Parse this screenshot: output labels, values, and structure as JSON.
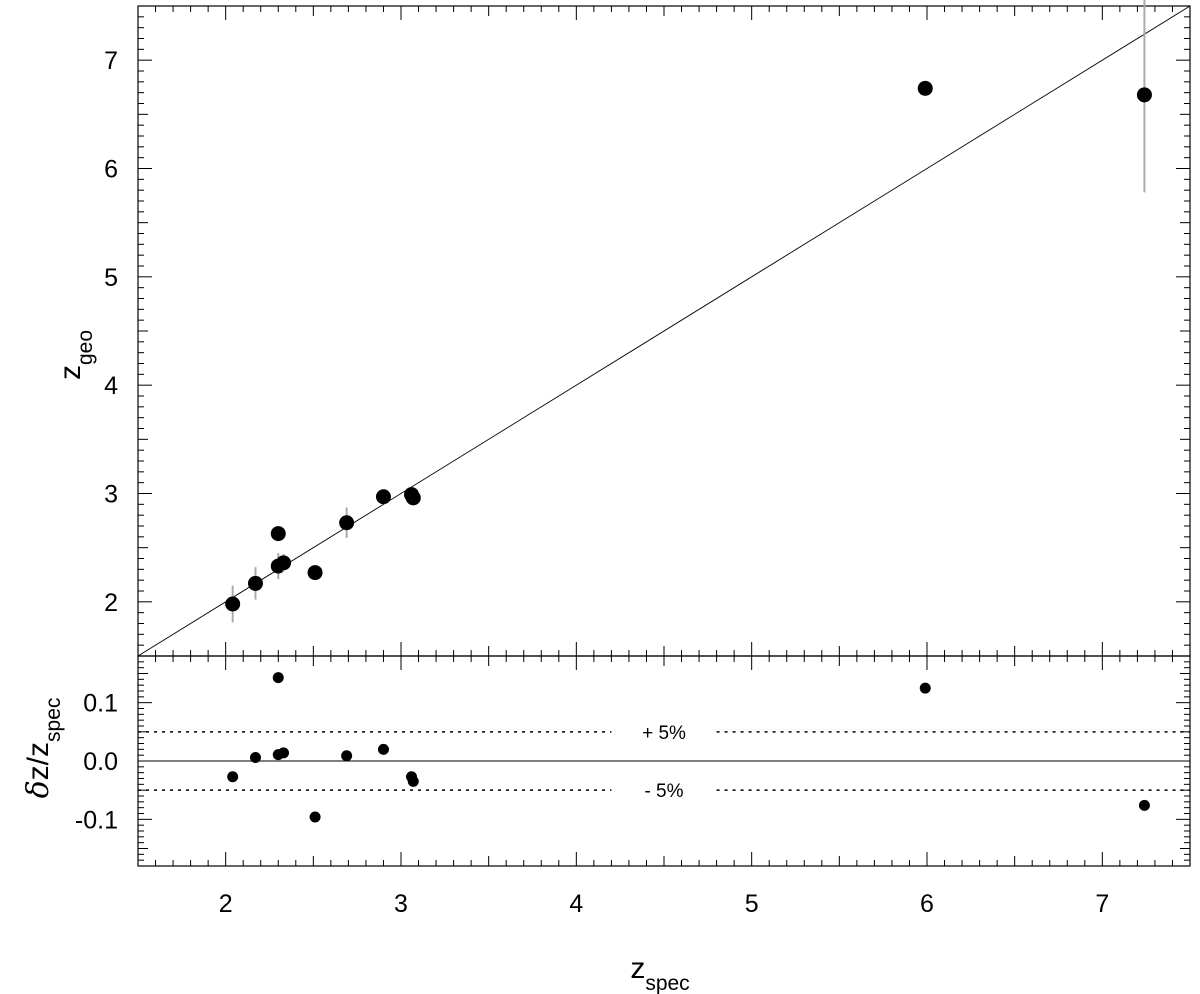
{
  "chart_data": [
    {
      "type": "scatter",
      "panel": "top",
      "xlim": [
        1.5,
        7.5
      ],
      "ylim": [
        1.5,
        7.5
      ],
      "x_ticks": [
        2,
        3,
        4,
        5,
        6,
        7
      ],
      "y_ticks": [
        2,
        3,
        4,
        5,
        6,
        7
      ],
      "y_tick_labels": [
        "2",
        "3",
        "4",
        "5",
        "6",
        "7"
      ],
      "ylabel": {
        "main": "z",
        "sub": "geo"
      },
      "reference_line": "y = x",
      "grid": false,
      "points": [
        {
          "x": 2.04,
          "y": 1.98,
          "err": 0.17
        },
        {
          "x": 2.17,
          "y": 2.17,
          "err": 0.15
        },
        {
          "x": 2.3,
          "y": 2.63,
          "err": 0.0
        },
        {
          "x": 2.3,
          "y": 2.33,
          "err": 0.12
        },
        {
          "x": 2.33,
          "y": 2.36,
          "err": 0.08
        },
        {
          "x": 2.51,
          "y": 2.27,
          "err": 0.0
        },
        {
          "x": 2.69,
          "y": 2.73,
          "err": 0.14
        },
        {
          "x": 2.9,
          "y": 2.97,
          "err": 0.0
        },
        {
          "x": 3.06,
          "y": 2.99,
          "err": 0.0
        },
        {
          "x": 3.07,
          "y": 2.96,
          "err": 0.0
        },
        {
          "x": 5.99,
          "y": 6.74,
          "err": 0.0
        },
        {
          "x": 7.24,
          "y": 6.68,
          "err": 0.9
        }
      ]
    },
    {
      "type": "scatter",
      "panel": "bottom",
      "xlim": [
        1.5,
        7.5
      ],
      "ylim": [
        -0.18,
        0.18
      ],
      "x_ticks": [
        2,
        3,
        4,
        5,
        6,
        7
      ],
      "x_tick_labels": [
        "2",
        "3",
        "4",
        "5",
        "6",
        "7"
      ],
      "y_ticks": [
        -0.1,
        0.0,
        0.1
      ],
      "y_tick_labels": [
        "-0.1",
        "0.0",
        "0.1"
      ],
      "xlabel": {
        "main": "z",
        "sub": "spec"
      },
      "ylabel": {
        "prefix": "δ",
        "main": "z/z",
        "sub": "spec"
      },
      "reference_lines": [
        {
          "y": 0.05,
          "style": "dotted",
          "label": "+ 5%"
        },
        {
          "y": 0.0,
          "style": "solid",
          "label": ""
        },
        {
          "y": -0.05,
          "style": "dotted",
          "label": "- 5%"
        }
      ],
      "points": [
        {
          "x": 2.04,
          "y": -0.027
        },
        {
          "x": 2.17,
          "y": 0.006
        },
        {
          "x": 2.3,
          "y": 0.143
        },
        {
          "x": 2.3,
          "y": 0.011
        },
        {
          "x": 2.33,
          "y": 0.014
        },
        {
          "x": 2.51,
          "y": -0.096
        },
        {
          "x": 2.69,
          "y": 0.009
        },
        {
          "x": 2.9,
          "y": 0.02
        },
        {
          "x": 3.06,
          "y": -0.027
        },
        {
          "x": 3.07,
          "y": -0.035
        },
        {
          "x": 5.99,
          "y": 0.125
        },
        {
          "x": 7.24,
          "y": -0.076
        }
      ]
    }
  ]
}
